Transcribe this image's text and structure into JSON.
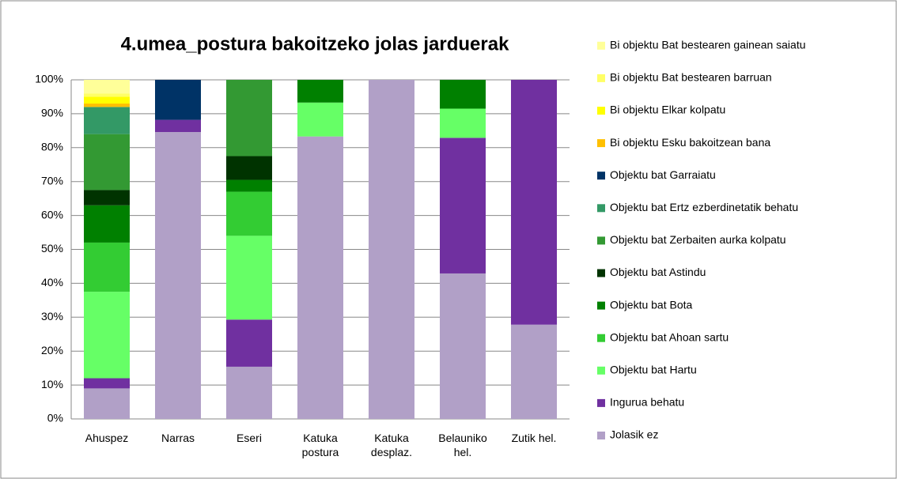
{
  "chart_data": {
    "type": "stacked_bar_100",
    "title": "4.umea_postura bakoitzeko jolas jarduerak",
    "categories": [
      "Ahuspez",
      "Narras",
      "Eseri",
      "Katuka postura",
      "Katuka desplaz.",
      "Belauniko hel.",
      "Zutik hel."
    ],
    "series": [
      {
        "name": "Jolasik ez",
        "color": "#b1a0c7",
        "values": [
          9,
          84.6,
          15.4,
          83.3,
          100,
          42.9,
          27.8
        ]
      },
      {
        "name": "Ingurua behatu",
        "color": "#7030a0",
        "values": [
          3,
          3.6,
          13.9,
          0,
          0,
          40,
          72.2
        ]
      },
      {
        "name": "Objektu bat Hartu",
        "color": "#66ff66",
        "values": [
          25.5,
          0,
          24.7,
          10,
          0,
          8.6,
          0
        ]
      },
      {
        "name": "Objektu bat Ahoan sartu",
        "color": "#33cc33",
        "values": [
          14.5,
          0,
          13,
          0,
          0,
          0,
          0
        ]
      },
      {
        "name": "Objektu bat Bota",
        "color": "#008000",
        "values": [
          11,
          0,
          3.5,
          6.7,
          0,
          8.5,
          0
        ]
      },
      {
        "name": "Objektu bat Astindu",
        "color": "#003300",
        "values": [
          4.5,
          0,
          7,
          0,
          0,
          0,
          0
        ]
      },
      {
        "name": "Objektu bat Zerbaiten aurka kolpatu",
        "color": "#339933",
        "values": [
          16.5,
          0,
          22.5,
          0,
          0,
          0,
          0
        ]
      },
      {
        "name": "Objektu bat Ertz ezberdinetatik behatu",
        "color": "#339966",
        "values": [
          8,
          0,
          0,
          0,
          0,
          0,
          0
        ]
      },
      {
        "name": "Objektu bat Garraiatu",
        "color": "#003366",
        "values": [
          0,
          11.8,
          0,
          0,
          0,
          0,
          0
        ]
      },
      {
        "name": "Bi objektu Esku bakoitzean bana",
        "color": "#ffc000",
        "values": [
          1,
          0,
          0,
          0,
          0,
          0,
          0
        ]
      },
      {
        "name": "Bi objektu Elkar kolpatu",
        "color": "#ffff00",
        "values": [
          2,
          0,
          0,
          0,
          0,
          0,
          0
        ]
      },
      {
        "name": "Bi objektu Bat bestearen barruan",
        "color": "#ffff66",
        "values": [
          1,
          0,
          0,
          0,
          0,
          0,
          0
        ]
      },
      {
        "name": "Bi objektu Bat bestearen gainean saiatu",
        "color": "#ffff99",
        "values": [
          4,
          0,
          0,
          0,
          0,
          0,
          0
        ]
      }
    ],
    "ylim": [
      0,
      100
    ],
    "yticks": [
      {
        "value": 0,
        "label": "0%"
      },
      {
        "value": 10,
        "label": "10%"
      },
      {
        "value": 20,
        "label": "20%"
      },
      {
        "value": 30,
        "label": "30%"
      },
      {
        "value": 40,
        "label": "40%"
      },
      {
        "value": 50,
        "label": "50%"
      },
      {
        "value": 60,
        "label": "60%"
      },
      {
        "value": 70,
        "label": "70%"
      },
      {
        "value": 80,
        "label": "80%"
      },
      {
        "value": 90,
        "label": "90%"
      },
      {
        "value": 100,
        "label": "100%"
      }
    ],
    "grid": true,
    "legend": "right"
  }
}
